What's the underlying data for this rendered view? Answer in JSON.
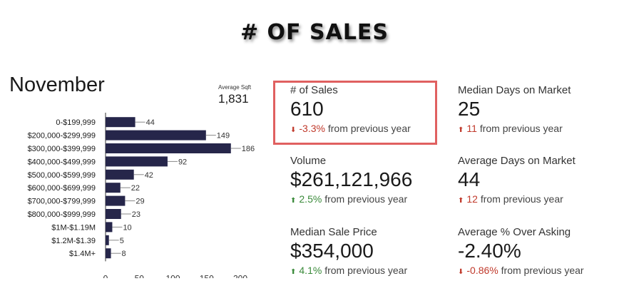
{
  "title": "# OF SALES",
  "month": "November",
  "average_sqft": {
    "label": "Average Sqft",
    "value": "1,831"
  },
  "stats": {
    "num_sales": {
      "label": "# of Sales",
      "value": "610",
      "change": "-3.3%",
      "suffix": " from previous year",
      "direction": "down",
      "arrow_color": "#c0392b",
      "change_color": "#c0392b"
    },
    "volume": {
      "label": "Volume",
      "value": "$261,121,966",
      "change": "2.5%",
      "suffix": " from previous year",
      "direction": "up",
      "arrow_color": "#3a8a3a",
      "change_color": "#3a8a3a"
    },
    "median_price": {
      "label": "Median Sale Price",
      "value": "$354,000",
      "change": "4.1%",
      "suffix": " from previous year",
      "direction": "up",
      "arrow_color": "#3a8a3a",
      "change_color": "#3a8a3a"
    },
    "median_dom": {
      "label": "Median Days on Market",
      "value": "25",
      "change": "11",
      "suffix": " from previous year",
      "direction": "up",
      "arrow_color": "#c0392b",
      "change_color": "#c0392b"
    },
    "average_dom": {
      "label": "Average Days on Market",
      "value": "44",
      "change": "12",
      "suffix": " from previous year",
      "direction": "up",
      "arrow_color": "#c0392b",
      "change_color": "#c0392b"
    },
    "avg_over_asking": {
      "label": "Average % Over Asking",
      "value": "-2.40%",
      "change": "-0.86%",
      "suffix": " from previous year",
      "direction": "down",
      "arrow_color": "#c0392b",
      "change_color": "#c0392b"
    }
  },
  "chart_data": {
    "type": "bar",
    "orientation": "horizontal",
    "categories": [
      "0-$199,999",
      "$200,000-$299,999",
      "$300,000-$399,999",
      "$400,000-$499,999",
      "$500,000-$599,999",
      "$600,000-$699,999",
      "$700,000-$799,999",
      "$800,000-$999,999",
      "$1M-$1.19M",
      "$1.2M-$1.39",
      "$1.4M+"
    ],
    "values": [
      44,
      149,
      186,
      92,
      42,
      22,
      29,
      23,
      10,
      5,
      8
    ],
    "xlim": [
      0,
      200
    ],
    "xticks": [
      0,
      50,
      100,
      150,
      200
    ],
    "bar_color": "#26264a",
    "grid": false
  }
}
